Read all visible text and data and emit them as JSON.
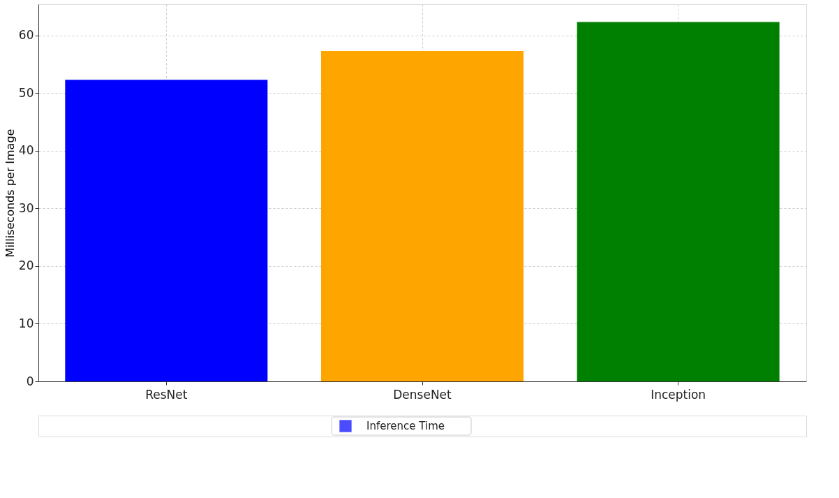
{
  "chart_data": {
    "type": "bar",
    "ylabel": "Milliseconds per Image",
    "categories": [
      "ResNet",
      "DenseNet",
      "Inception"
    ],
    "series": [
      {
        "name": "Inference Time",
        "color": "#0000ff",
        "colors": [
          "#0000ff",
          "#ffa500",
          "#008000"
        ],
        "values": [
          52.3,
          57.3,
          62.3
        ]
      }
    ],
    "ylim": [
      0,
      65.4
    ],
    "yticks": [
      0,
      10,
      20,
      30,
      40,
      50,
      60
    ],
    "grid": true,
    "legend": "bottom"
  }
}
